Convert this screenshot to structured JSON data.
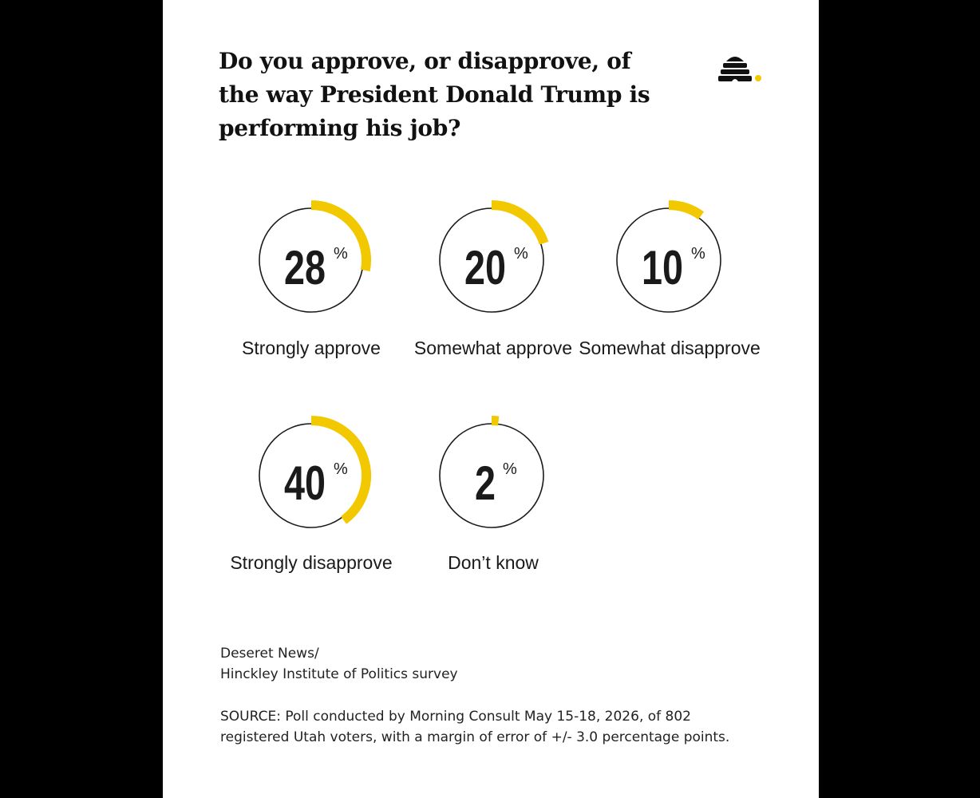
{
  "title": "Do you approve, or disapprove, of the way President Donald Trump is performing his job?",
  "colors": {
    "accent": "#f2c800",
    "ring": "#1a1a1a",
    "text": "#1a1a1a"
  },
  "logo_icon": "beehive-icon",
  "chart_data": {
    "type": "donut",
    "unit": "%",
    "items": [
      {
        "label": "Strongly approve",
        "value": 28
      },
      {
        "label": "Somewhat approve",
        "value": 20
      },
      {
        "label": "Somewhat disapprove",
        "value": 10
      },
      {
        "label": "Strongly disapprove",
        "value": 40
      },
      {
        "label": "Don’t know",
        "value": 2
      }
    ]
  },
  "credit": {
    "line1": "Deseret News/",
    "line2": "Hinckley Institute of Politics survey"
  },
  "source": {
    "line1": "SOURCE: Poll conducted by Morning Consult May 15-18, 2026, of 802",
    "line2": "registered Utah voters, with a margin of error of +/- 3.0 percentage points."
  }
}
